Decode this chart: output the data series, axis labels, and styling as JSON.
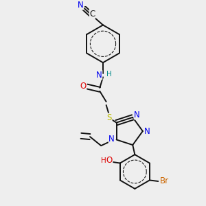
{
  "bg_color": "#eeeeee",
  "bond_color": "#111111",
  "bond_width": 1.4,
  "atom_colors": {
    "N": "#0000ee",
    "O": "#dd0000",
    "S": "#bbbb00",
    "Br": "#cc6600",
    "C": "#111111",
    "H_nh": "#008888",
    "H_oh": "#dd0000"
  },
  "font_size": 8.5,
  "font_size_small": 7.5
}
